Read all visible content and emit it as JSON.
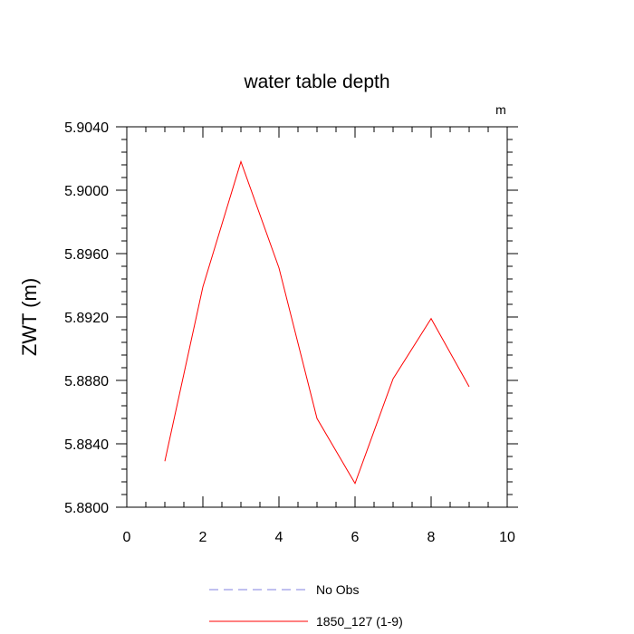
{
  "chart_data": {
    "type": "line",
    "title": "water table depth",
    "ylabel": "ZWT  (m)",
    "xlabel": "",
    "units": "m",
    "xlim": [
      0,
      10
    ],
    "ylim": [
      5.88,
      5.904
    ],
    "xticks": [
      0,
      2,
      4,
      6,
      8,
      10
    ],
    "xtick_labels": [
      "0",
      "2",
      "4",
      "6",
      "8",
      "10"
    ],
    "yticks": [
      5.88,
      5.884,
      5.888,
      5.892,
      5.896,
      5.9,
      5.904
    ],
    "ytick_labels": [
      "5.8800",
      "5.8840",
      "5.8880",
      "5.8920",
      "5.8960",
      "5.9000",
      "5.9040"
    ],
    "grid": false,
    "legend_position": "bottom-center",
    "series": [
      {
        "name": "No Obs",
        "color": "#8080e0",
        "dash": true,
        "x": [],
        "values": []
      },
      {
        "name": "1850_127 (1-9)",
        "color": "#ff0000",
        "dash": false,
        "x": [
          1,
          2,
          3,
          4,
          5,
          6,
          7,
          8,
          9
        ],
        "values": [
          5.8829,
          5.8939,
          5.9018,
          5.8951,
          5.8856,
          5.8815,
          5.8881,
          5.8919,
          5.8876
        ]
      }
    ]
  }
}
